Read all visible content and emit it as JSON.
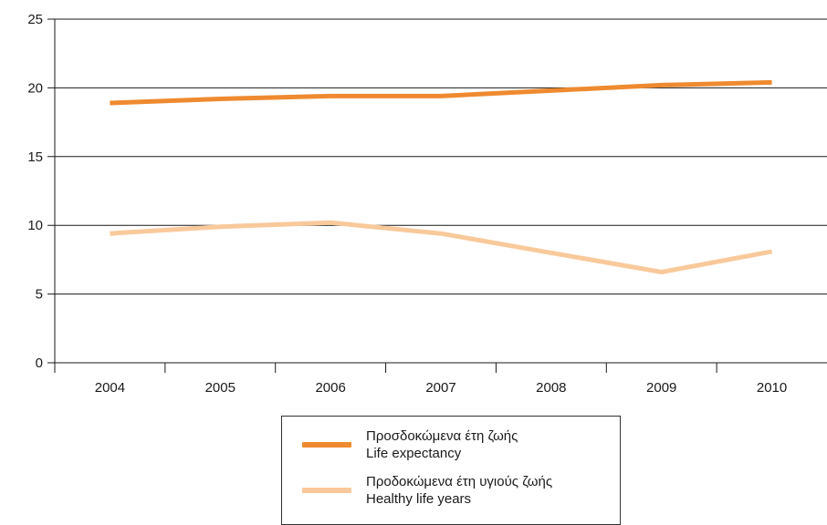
{
  "chart_data": {
    "type": "line",
    "title": "",
    "xlabel": "",
    "ylabel": "",
    "categories": [
      "2004",
      "2005",
      "2006",
      "2007",
      "2008",
      "2009",
      "2010"
    ],
    "ylim": [
      0,
      25
    ],
    "yticks": [
      0,
      5,
      10,
      15,
      20,
      25
    ],
    "grid": true,
    "legend_position": "bottom-center",
    "series": [
      {
        "label_el": "Προσδοκώμενα έτη ζωής",
        "label_en": "Life expectancy",
        "color": "#ef8a30",
        "values": [
          18.9,
          19.2,
          19.4,
          19.4,
          19.8,
          20.2,
          20.4
        ]
      },
      {
        "label_el": "Προδοκώμενα έτη υγιούς ζωής",
        "label_en": "Healthy life years",
        "color": "#f9c99b",
        "values": [
          9.4,
          9.9,
          10.2,
          9.4,
          8.0,
          6.6,
          8.1
        ]
      }
    ]
  }
}
